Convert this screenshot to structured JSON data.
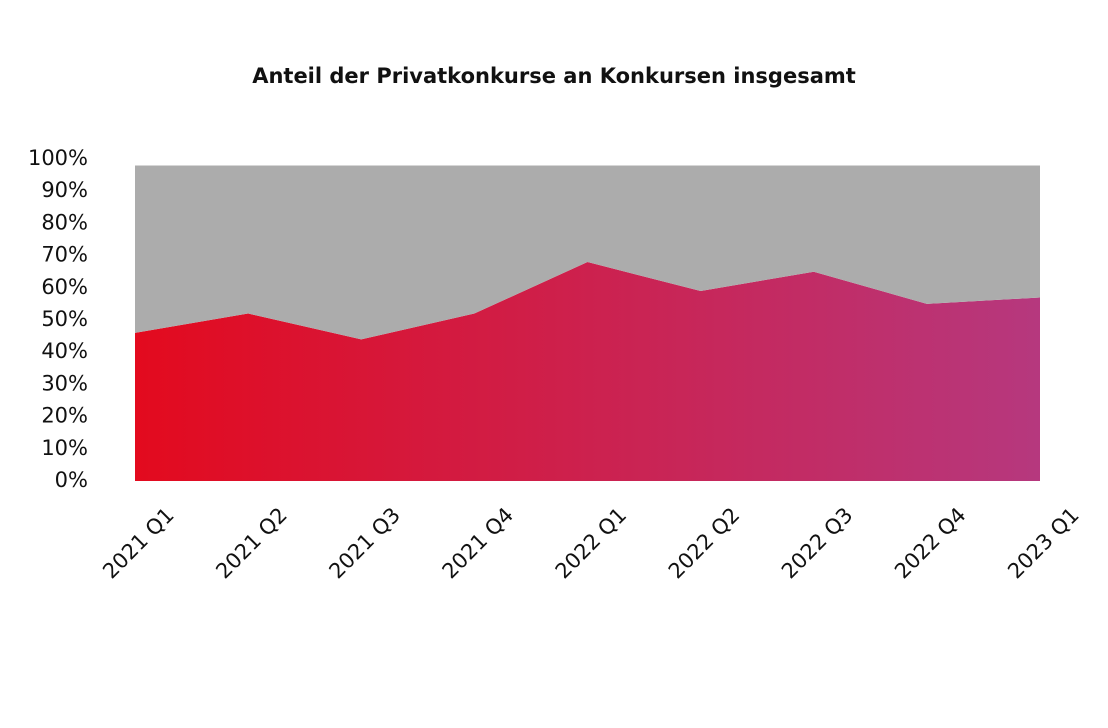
{
  "chart_data": {
    "type": "stacked-area",
    "title": "Anteil der Privatkonkurse an Konkursen insgesamt",
    "categories": [
      "2021 Q1",
      "2021 Q2",
      "2021 Q3",
      "2021 Q4",
      "2022 Q1",
      "2022 Q2",
      "2022 Q3",
      "2022 Q4",
      "2023 Q1"
    ],
    "series": [
      {
        "color": "#e30a1e",
        "gradient": [
          "#e30a1e",
          "#b6387e"
        ],
        "values": [
          46,
          52,
          44,
          52,
          68,
          59,
          65,
          55,
          57
        ]
      },
      {
        "color": "#acacac",
        "values": [
          52,
          46,
          54,
          46,
          30,
          39,
          33,
          43,
          41
        ]
      }
    ],
    "ylim": [
      0,
      100
    ],
    "yticks": [
      {
        "value": 0,
        "label": "0%"
      },
      {
        "value": 10,
        "label": "10%"
      },
      {
        "value": 20,
        "label": "20%"
      },
      {
        "value": 30,
        "label": "30%"
      },
      {
        "value": 40,
        "label": "40%"
      },
      {
        "value": 50,
        "label": "50%"
      },
      {
        "value": 60,
        "label": "60%"
      },
      {
        "value": 70,
        "label": "70%"
      },
      {
        "value": 80,
        "label": "80%"
      },
      {
        "value": 90,
        "label": "90%"
      },
      {
        "value": 100,
        "label": "100%"
      }
    ],
    "grid": false
  }
}
